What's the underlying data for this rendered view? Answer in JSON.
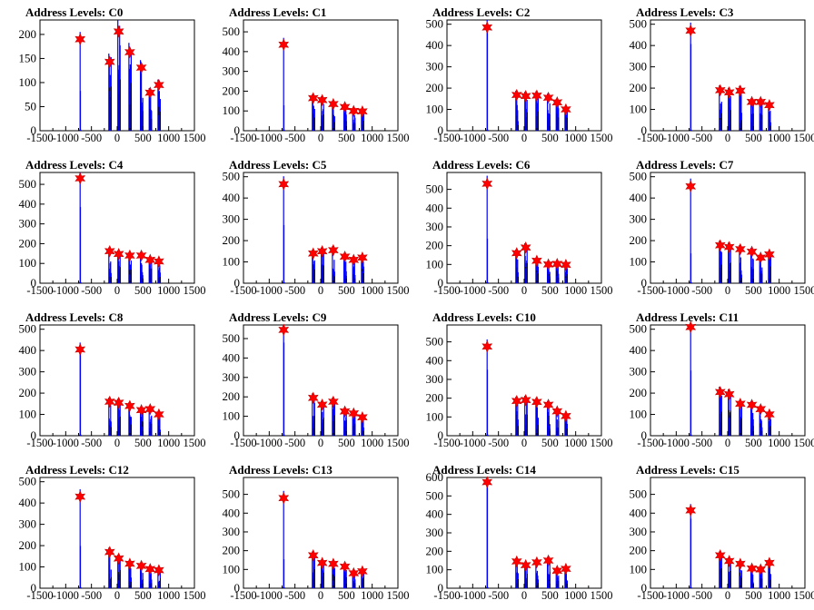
{
  "colors": {
    "histogram": "#0000ff",
    "peak_marker": "#ff0000",
    "axis": "#000000"
  },
  "chart_data": [
    {
      "title": "Address Levels: C0",
      "type": "histogram",
      "xlim": [
        -1500,
        1500
      ],
      "ylim": [
        0,
        230
      ],
      "yticks": [
        0,
        50,
        100,
        150,
        200
      ],
      "xtick_labels": [
        "-1500",
        "-1000",
        "-500",
        "0",
        "500",
        "1000",
        "1500"
      ],
      "peaks": [
        {
          "x": -720,
          "y": 190
        },
        {
          "x": -145,
          "y": 143
        },
        {
          "x": 30,
          "y": 206
        },
        {
          "x": 245,
          "y": 163
        },
        {
          "x": 470,
          "y": 131
        },
        {
          "x": 640,
          "y": 79
        },
        {
          "x": 810,
          "y": 95
        }
      ]
    },
    {
      "title": "Address Levels: C1",
      "type": "histogram",
      "xlim": [
        -1500,
        1500
      ],
      "ylim": [
        0,
        560
      ],
      "yticks": [
        0,
        100,
        200,
        300,
        400,
        500
      ],
      "xtick_labels": [
        "-1500",
        "-1000",
        "-500",
        "0",
        "500",
        "1000",
        "1500"
      ],
      "peaks": [
        {
          "x": -720,
          "y": 435
        },
        {
          "x": -145,
          "y": 165
        },
        {
          "x": 30,
          "y": 155
        },
        {
          "x": 245,
          "y": 135
        },
        {
          "x": 470,
          "y": 120
        },
        {
          "x": 640,
          "y": 100
        },
        {
          "x": 810,
          "y": 98
        }
      ]
    },
    {
      "title": "Address Levels: C2",
      "type": "histogram",
      "xlim": [
        -1500,
        1500
      ],
      "ylim": [
        0,
        520
      ],
      "yticks": [
        0,
        100,
        200,
        300,
        400,
        500
      ],
      "xtick_labels": [
        "-1500",
        "-1000",
        "-500",
        "0",
        "500",
        "1000",
        "1500"
      ],
      "peaks": [
        {
          "x": -720,
          "y": 485
        },
        {
          "x": -145,
          "y": 168
        },
        {
          "x": 30,
          "y": 163
        },
        {
          "x": 245,
          "y": 165
        },
        {
          "x": 470,
          "y": 155
        },
        {
          "x": 640,
          "y": 133
        },
        {
          "x": 810,
          "y": 100
        }
      ]
    },
    {
      "title": "Address Levels: C3",
      "type": "histogram",
      "xlim": [
        -1500,
        1500
      ],
      "ylim": [
        0,
        520
      ],
      "yticks": [
        0,
        100,
        200,
        300,
        400,
        500
      ],
      "xtick_labels": [
        "-1500",
        "-1000",
        "-500",
        "0",
        "500",
        "1000",
        "1500"
      ],
      "peaks": [
        {
          "x": -720,
          "y": 470
        },
        {
          "x": -145,
          "y": 190
        },
        {
          "x": 30,
          "y": 180
        },
        {
          "x": 245,
          "y": 188
        },
        {
          "x": 470,
          "y": 135
        },
        {
          "x": 640,
          "y": 135
        },
        {
          "x": 810,
          "y": 120
        }
      ]
    },
    {
      "title": "Address Levels: C4",
      "type": "histogram",
      "xlim": [
        -1500,
        1500
      ],
      "ylim": [
        0,
        560
      ],
      "yticks": [
        0,
        100,
        200,
        300,
        400,
        500
      ],
      "xtick_labels": [
        "-1500",
        "-1000",
        "-500",
        "0",
        "500",
        "1000",
        "1500"
      ],
      "peaks": [
        {
          "x": -720,
          "y": 530
        },
        {
          "x": -145,
          "y": 162
        },
        {
          "x": 30,
          "y": 148
        },
        {
          "x": 245,
          "y": 140
        },
        {
          "x": 470,
          "y": 140
        },
        {
          "x": 640,
          "y": 118
        },
        {
          "x": 810,
          "y": 110
        }
      ]
    },
    {
      "title": "Address Levels: C5",
      "type": "histogram",
      "xlim": [
        -1500,
        1500
      ],
      "ylim": [
        0,
        520
      ],
      "yticks": [
        0,
        100,
        200,
        300,
        400,
        500
      ],
      "xtick_labels": [
        "-1500",
        "-1000",
        "-500",
        "0",
        "500",
        "1000",
        "1500"
      ],
      "peaks": [
        {
          "x": -720,
          "y": 465
        },
        {
          "x": -145,
          "y": 140
        },
        {
          "x": 30,
          "y": 150
        },
        {
          "x": 245,
          "y": 155
        },
        {
          "x": 470,
          "y": 125
        },
        {
          "x": 640,
          "y": 110
        },
        {
          "x": 810,
          "y": 120
        }
      ]
    },
    {
      "title": "Address Levels: C6",
      "type": "histogram",
      "xlim": [
        -1500,
        1500
      ],
      "ylim": [
        0,
        590
      ],
      "yticks": [
        0,
        100,
        200,
        300,
        400,
        500
      ],
      "xtick_labels": [
        "-1500",
        "-1000",
        "-500",
        "0",
        "500",
        "1000",
        "1500"
      ],
      "peaks": [
        {
          "x": -720,
          "y": 530
        },
        {
          "x": -145,
          "y": 160
        },
        {
          "x": 30,
          "y": 190
        },
        {
          "x": 245,
          "y": 120
        },
        {
          "x": 470,
          "y": 100
        },
        {
          "x": 640,
          "y": 103
        },
        {
          "x": 810,
          "y": 98
        }
      ]
    },
    {
      "title": "Address Levels: C7",
      "type": "histogram",
      "xlim": [
        -1500,
        1500
      ],
      "ylim": [
        0,
        520
      ],
      "yticks": [
        0,
        100,
        200,
        300,
        400,
        500
      ],
      "xtick_labels": [
        "-1500",
        "-1000",
        "-500",
        "0",
        "500",
        "1000",
        "1500"
      ],
      "peaks": [
        {
          "x": -720,
          "y": 455
        },
        {
          "x": -145,
          "y": 178
        },
        {
          "x": 30,
          "y": 170
        },
        {
          "x": 245,
          "y": 160
        },
        {
          "x": 470,
          "y": 148
        },
        {
          "x": 640,
          "y": 120
        },
        {
          "x": 810,
          "y": 135
        }
      ]
    },
    {
      "title": "Address Levels: C8",
      "type": "histogram",
      "xlim": [
        -1500,
        1500
      ],
      "ylim": [
        0,
        520
      ],
      "yticks": [
        0,
        100,
        200,
        300,
        400,
        500
      ],
      "xtick_labels": [
        "-1500",
        "-1000",
        "-500",
        "0",
        "500",
        "1000",
        "1500"
      ],
      "peaks": [
        {
          "x": -720,
          "y": 405
        },
        {
          "x": -145,
          "y": 160
        },
        {
          "x": 30,
          "y": 155
        },
        {
          "x": 245,
          "y": 140
        },
        {
          "x": 470,
          "y": 120
        },
        {
          "x": 640,
          "y": 125
        },
        {
          "x": 810,
          "y": 100
        }
      ]
    },
    {
      "title": "Address Levels: C9",
      "type": "histogram",
      "xlim": [
        -1500,
        1500
      ],
      "ylim": [
        0,
        570
      ],
      "yticks": [
        0,
        100,
        200,
        300,
        400,
        500
      ],
      "xtick_labels": [
        "-1500",
        "-1000",
        "-500",
        "0",
        "500",
        "1000",
        "1500"
      ],
      "peaks": [
        {
          "x": -720,
          "y": 545
        },
        {
          "x": -145,
          "y": 195
        },
        {
          "x": 30,
          "y": 160
        },
        {
          "x": 245,
          "y": 175
        },
        {
          "x": 470,
          "y": 125
        },
        {
          "x": 640,
          "y": 115
        },
        {
          "x": 810,
          "y": 95
        }
      ]
    },
    {
      "title": "Address Levels: C10",
      "type": "histogram",
      "xlim": [
        -1500,
        1500
      ],
      "ylim": [
        0,
        590
      ],
      "yticks": [
        0,
        100,
        200,
        300,
        400,
        500
      ],
      "xtick_labels": [
        "-1500",
        "-1000",
        "-500",
        "0",
        "500",
        "1000",
        "1500"
      ],
      "peaks": [
        {
          "x": -720,
          "y": 475
        },
        {
          "x": -145,
          "y": 185
        },
        {
          "x": 30,
          "y": 190
        },
        {
          "x": 245,
          "y": 180
        },
        {
          "x": 470,
          "y": 165
        },
        {
          "x": 640,
          "y": 130
        },
        {
          "x": 810,
          "y": 105
        }
      ]
    },
    {
      "title": "Address Levels: C11",
      "type": "histogram",
      "xlim": [
        -1500,
        1500
      ],
      "ylim": [
        0,
        520
      ],
      "yticks": [
        0,
        100,
        200,
        300,
        400,
        500
      ],
      "xtick_labels": [
        "-1500",
        "-1000",
        "-500",
        "0",
        "500",
        "1000",
        "1500"
      ],
      "peaks": [
        {
          "x": -720,
          "y": 510
        },
        {
          "x": -145,
          "y": 205
        },
        {
          "x": 30,
          "y": 195
        },
        {
          "x": 245,
          "y": 150
        },
        {
          "x": 470,
          "y": 145
        },
        {
          "x": 640,
          "y": 125
        },
        {
          "x": 810,
          "y": 100
        }
      ]
    },
    {
      "title": "Address Levels: C12",
      "type": "histogram",
      "xlim": [
        -1500,
        1500
      ],
      "ylim": [
        0,
        520
      ],
      "yticks": [
        0,
        100,
        200,
        300,
        400,
        500
      ],
      "xtick_labels": [
        "-1500",
        "-1000",
        "-500",
        "0",
        "500",
        "1000",
        "1500"
      ],
      "peaks": [
        {
          "x": -720,
          "y": 430
        },
        {
          "x": -145,
          "y": 170
        },
        {
          "x": 30,
          "y": 140
        },
        {
          "x": 245,
          "y": 115
        },
        {
          "x": 470,
          "y": 105
        },
        {
          "x": 640,
          "y": 90
        },
        {
          "x": 810,
          "y": 85
        }
      ]
    },
    {
      "title": "Address Levels: C13",
      "type": "histogram",
      "xlim": [
        -1500,
        1500
      ],
      "ylim": [
        0,
        590
      ],
      "yticks": [
        0,
        100,
        200,
        300,
        400,
        500
      ],
      "xtick_labels": [
        "-1500",
        "-1000",
        "-500",
        "0",
        "500",
        "1000",
        "1500"
      ],
      "peaks": [
        {
          "x": -720,
          "y": 480
        },
        {
          "x": -145,
          "y": 175
        },
        {
          "x": 30,
          "y": 135
        },
        {
          "x": 245,
          "y": 130
        },
        {
          "x": 470,
          "y": 115
        },
        {
          "x": 640,
          "y": 80
        },
        {
          "x": 810,
          "y": 90
        }
      ]
    },
    {
      "title": "Address Levels: C14",
      "type": "histogram",
      "xlim": [
        -1500,
        1500
      ],
      "ylim": [
        0,
        600
      ],
      "yticks": [
        0,
        100,
        200,
        300,
        400,
        500,
        600
      ],
      "xtick_labels": [
        "-1500",
        "-1000",
        "-500",
        "0",
        "500",
        "1000",
        "1500"
      ],
      "peaks": [
        {
          "x": -720,
          "y": 575
        },
        {
          "x": -145,
          "y": 145
        },
        {
          "x": 30,
          "y": 125
        },
        {
          "x": 245,
          "y": 140
        },
        {
          "x": 470,
          "y": 150
        },
        {
          "x": 640,
          "y": 95
        },
        {
          "x": 810,
          "y": 105
        }
      ]
    },
    {
      "title": "Address Levels: C15",
      "type": "histogram",
      "xlim": [
        -1500,
        1500
      ],
      "ylim": [
        0,
        590
      ],
      "yticks": [
        0,
        100,
        200,
        300,
        400,
        500
      ],
      "xtick_labels": [
        "-1500",
        "-1000",
        "-500",
        "0",
        "500",
        "1000",
        "1500"
      ],
      "peaks": [
        {
          "x": -720,
          "y": 415
        },
        {
          "x": -145,
          "y": 175
        },
        {
          "x": 30,
          "y": 145
        },
        {
          "x": 245,
          "y": 130
        },
        {
          "x": 470,
          "y": 105
        },
        {
          "x": 640,
          "y": 100
        },
        {
          "x": 810,
          "y": 135
        }
      ]
    }
  ]
}
